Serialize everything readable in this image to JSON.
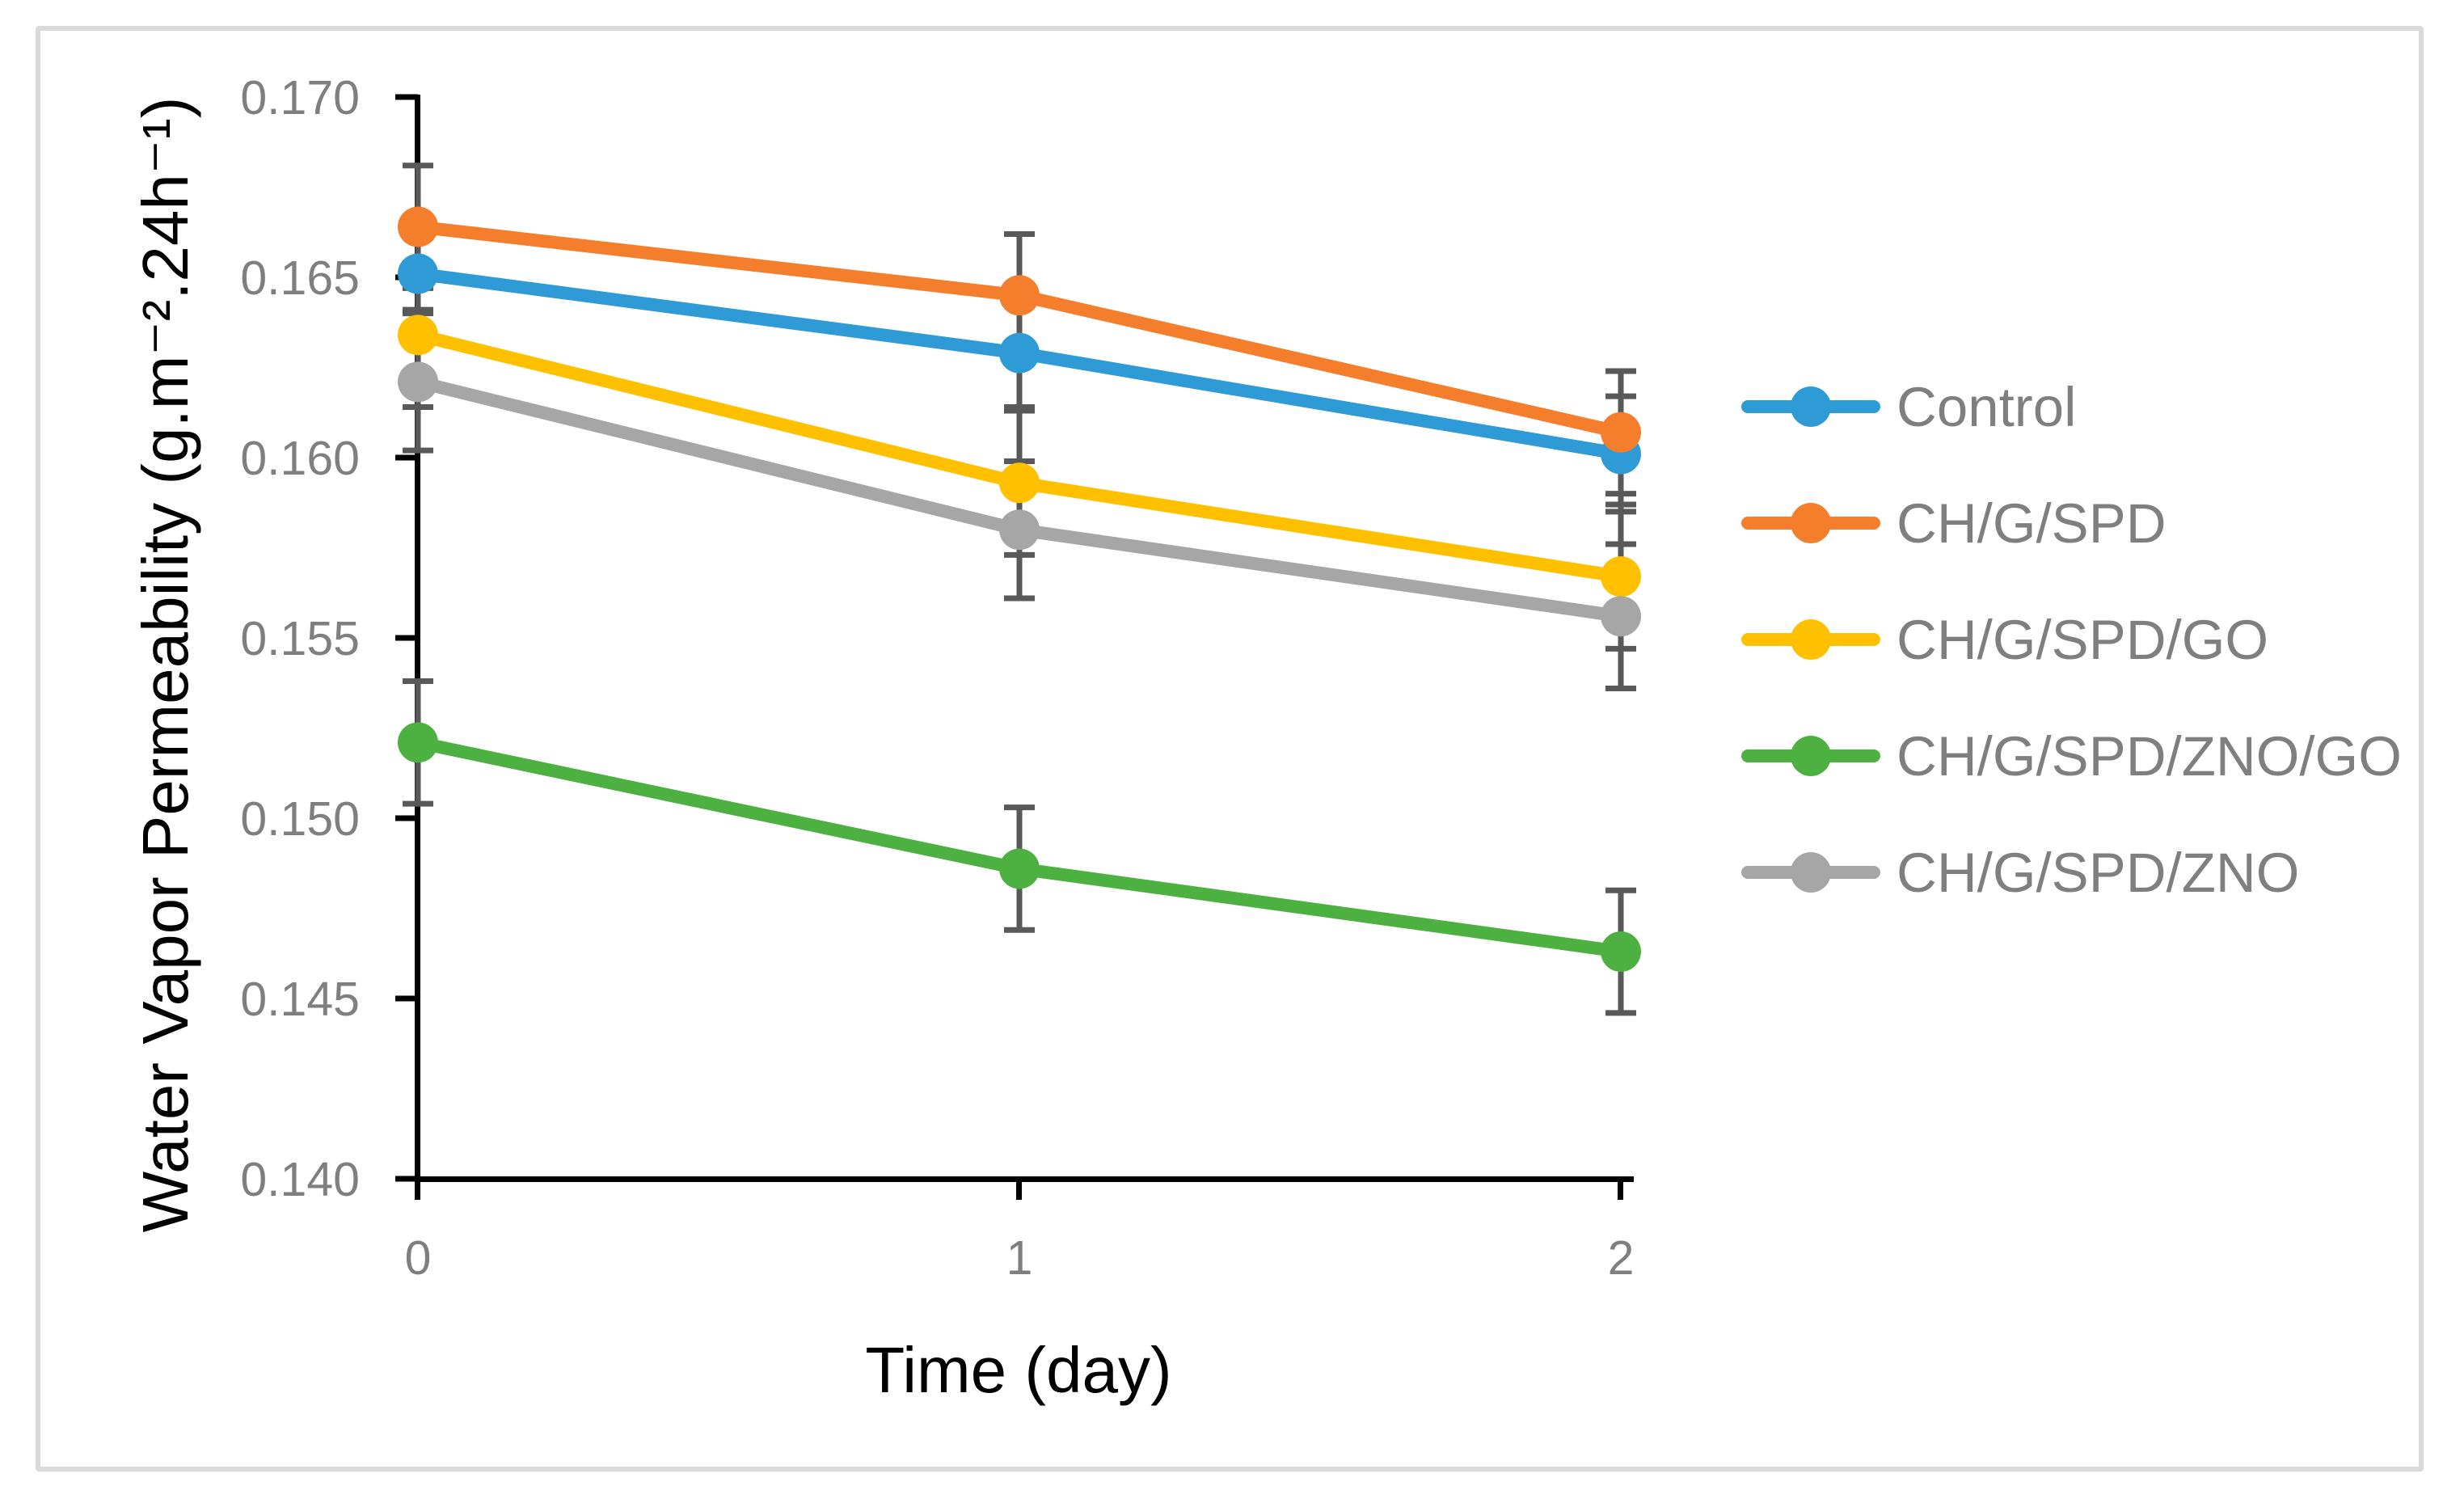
{
  "figure": {
    "background_color": "#FFFFFF",
    "border_color": "#D9D9D9"
  },
  "chart_data": {
    "type": "line",
    "title": "",
    "xlabel": "Time (day)",
    "ylabel": "Water Vapor Permeability (g.m⁻².24h⁻¹)",
    "x": [
      0,
      1,
      2
    ],
    "x_tick_labels": [
      "0",
      "1",
      "2"
    ],
    "xlim": [
      0,
      2
    ],
    "y_ticks": [
      0.17,
      0.165,
      0.16,
      0.155,
      0.15,
      0.145,
      0.14
    ],
    "y_tick_labels": [
      "0.170",
      "0.165",
      "0.160",
      "0.155",
      "0.150",
      "0.145",
      "0.140"
    ],
    "ylim": [
      0.14,
      0.17
    ],
    "grid": false,
    "legend_position": "right",
    "marker": "circle",
    "error_bars": true,
    "error_bar_color": "#595959",
    "axis_color": "#000000",
    "tick_label_color": "#7F7F7F",
    "series": [
      {
        "name": "Control",
        "color": "#2E9BD6",
        "values": [
          0.1651,
          0.1629,
          0.1601
        ],
        "errors": [
          0.001,
          0.0015,
          0.0016
        ]
      },
      {
        "name": "CH/G/SPD",
        "color": "#F57E2C",
        "values": [
          0.1664,
          0.1645,
          0.1607
        ],
        "errors": [
          0.0017,
          0.0017,
          0.0017
        ]
      },
      {
        "name": "CH/G/SPD/GO",
        "color": "#FFC000",
        "values": [
          0.1634,
          0.1593,
          0.1567
        ],
        "errors": [
          0.002,
          0.002,
          0.002
        ]
      },
      {
        "name": "CH/G/SPD/ZNO/GO",
        "color": "#4CB140",
        "values": [
          0.1521,
          0.1486,
          0.1463
        ],
        "errors": [
          0.0017,
          0.0017,
          0.0017
        ]
      },
      {
        "name": "CH/G/SPD/ZNO",
        "color": "#A6A6A6",
        "values": [
          0.1621,
          0.158,
          0.1556
        ],
        "errors": [
          0.0019,
          0.0019,
          0.002
        ]
      }
    ]
  }
}
